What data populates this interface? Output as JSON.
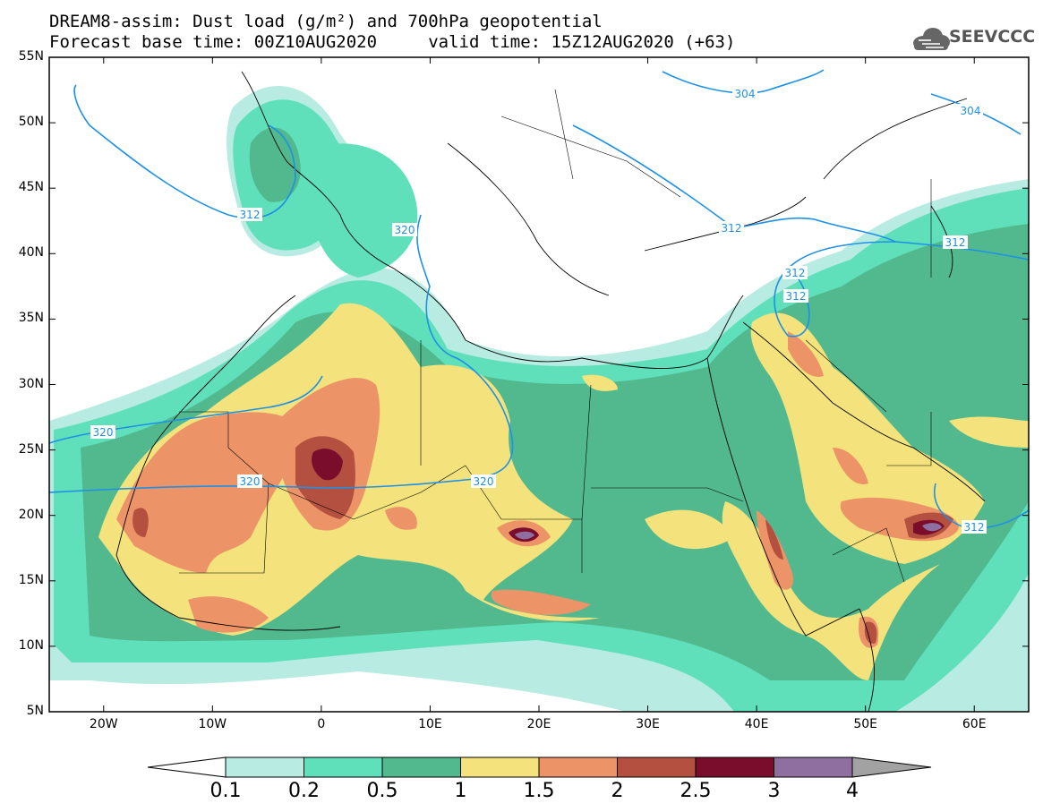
{
  "title": {
    "line1": "DREAM8-assim: Dust load (g/m²) and 700hPa geopotential",
    "line2": "Forecast base time: 00Z10AUG2020     valid time: 15Z12AUG2020 (+63)"
  },
  "logo": {
    "text": "SEEVCCC",
    "icon": "cloud-icon"
  },
  "map": {
    "lon_range": [
      -25,
      65
    ],
    "lat_range": [
      5,
      55
    ],
    "lat_ticks": [
      "55N",
      "50N",
      "45N",
      "40N",
      "35N",
      "30N",
      "25N",
      "20N",
      "15N",
      "10N",
      "5N"
    ],
    "lon_ticks": [
      "20W",
      "10W",
      "0",
      "10E",
      "20E",
      "30E",
      "40E",
      "50E",
      "60E"
    ],
    "contour_labels": [
      "304",
      "304",
      "312",
      "312",
      "312",
      "312",
      "312",
      "312",
      "320",
      "320",
      "320",
      "320"
    ]
  },
  "colorbar": {
    "labels": [
      "0.1",
      "0.2",
      "0.5",
      "1",
      "1.5",
      "2",
      "2.5",
      "3",
      "4"
    ],
    "colors": [
      "#ffffff",
      "#b8ece2",
      "#5fe0bb",
      "#52b98f",
      "#f4e37c",
      "#ec9468",
      "#b4503f",
      "#7a0d2b",
      "#8f6f9f",
      "#a2a2a2"
    ]
  }
}
